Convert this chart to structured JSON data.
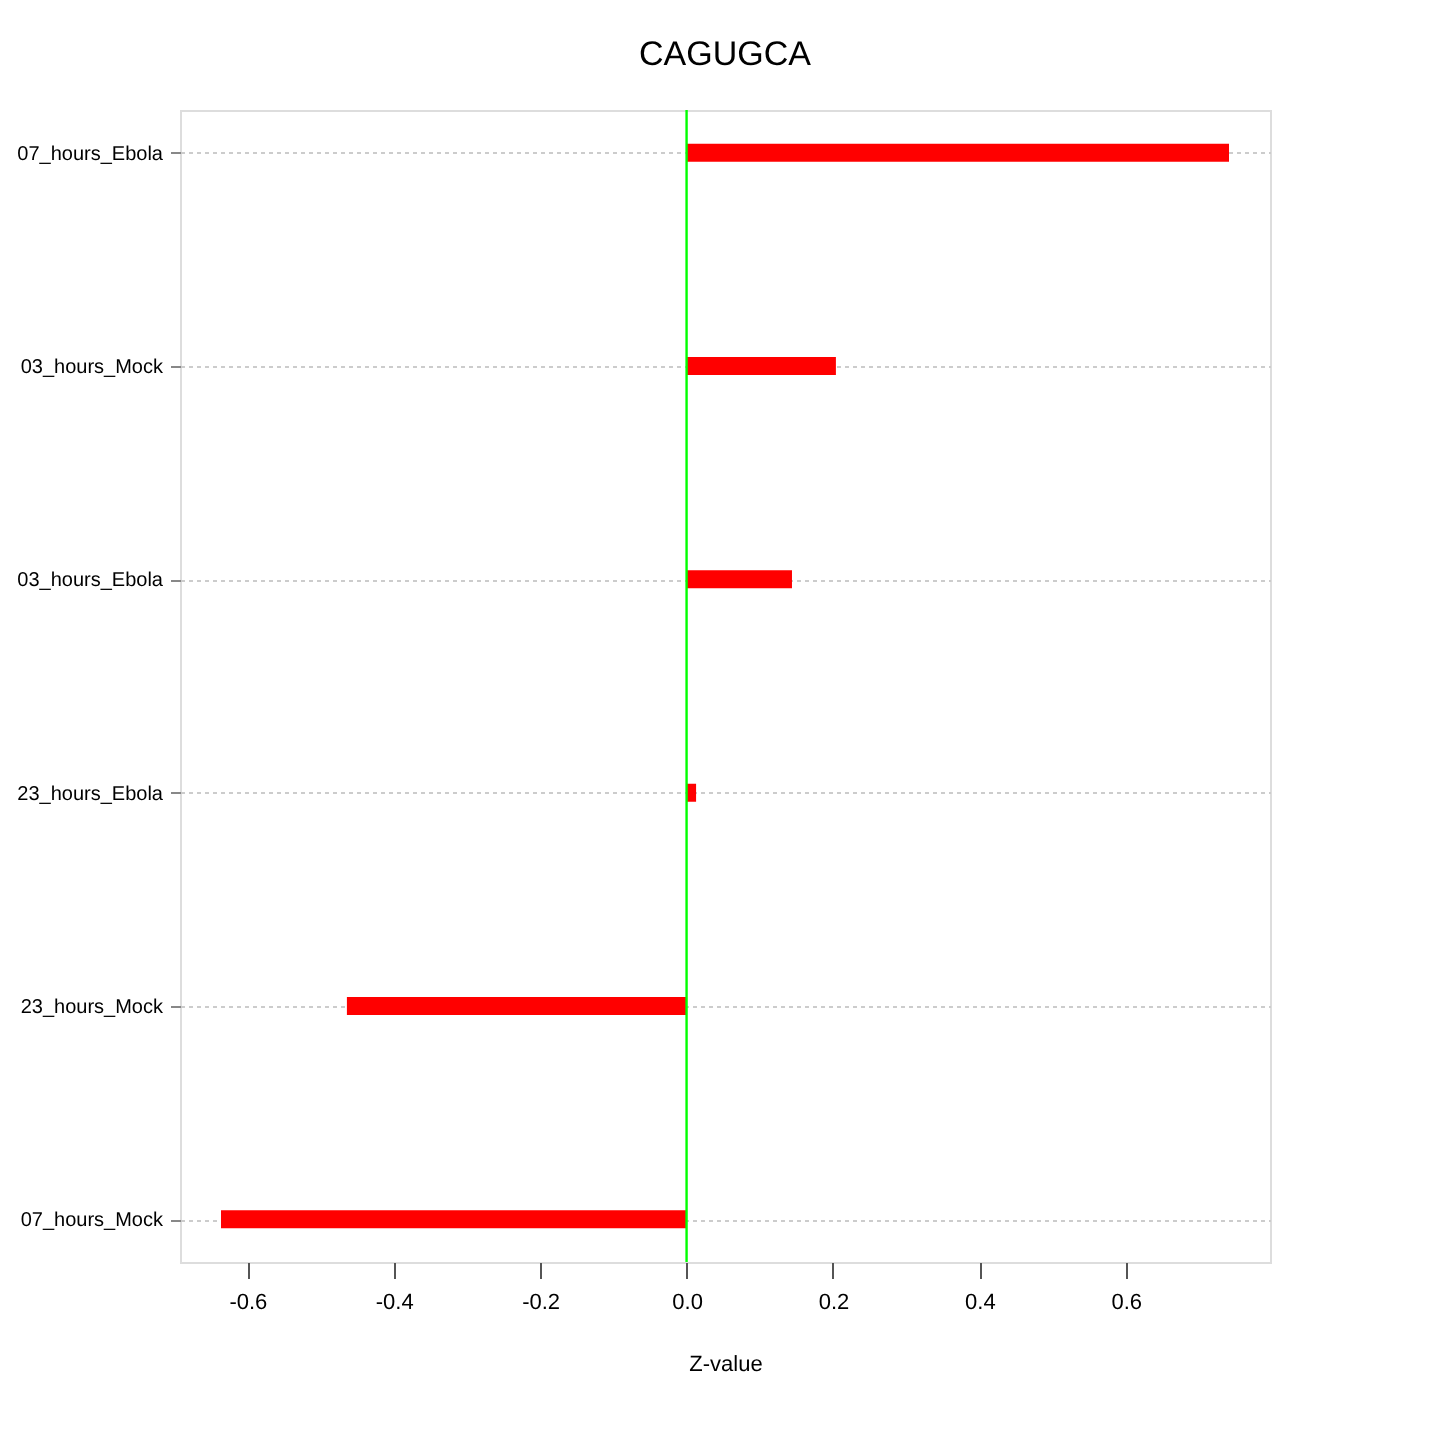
{
  "chart_data": {
    "type": "bar",
    "orientation": "horizontal",
    "title": "CAGUGCA",
    "xlabel": "Z-value",
    "categories": [
      "07_hours_Ebola",
      "03_hours_Mock",
      "03_hours_Ebola",
      "23_hours_Ebola",
      "23_hours_Mock",
      "07_hours_Mock"
    ],
    "values": [
      0.741,
      0.204,
      0.144,
      0.013,
      -0.464,
      -0.636
    ],
    "color": "#ff0000",
    "xlim": [
      -0.692,
      0.797
    ],
    "xticks": [
      -0.6,
      -0.4,
      -0.2,
      {
        "value": 0,
        "label": "0.0"
      },
      0.2,
      0.4,
      0.6
    ],
    "grid": "y",
    "ref_lines": [
      {
        "axis": "x",
        "value": 0,
        "color": "#00ff00"
      }
    ]
  }
}
